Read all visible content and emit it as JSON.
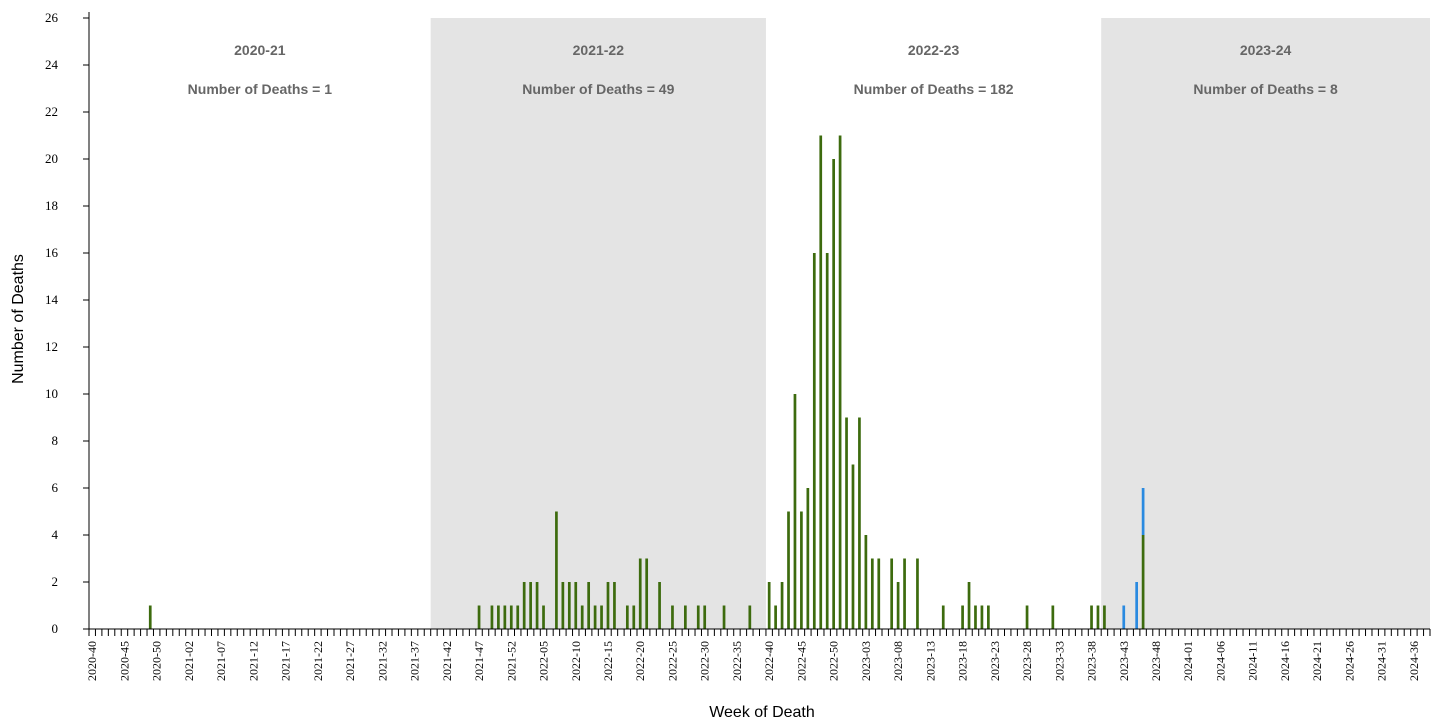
{
  "chart_data": {
    "type": "bar",
    "xlabel": "Week of Death",
    "ylabel": "Number of Deaths",
    "ylim": [
      0,
      26
    ],
    "yticks": [
      0,
      2,
      4,
      6,
      8,
      10,
      12,
      14,
      16,
      18,
      20,
      22,
      24,
      26
    ],
    "grid": false,
    "legend": "none",
    "colors": {
      "main": "#3d6b0e",
      "secondary": "#2a8ae0",
      "band": "#e4e4e4"
    },
    "seasons": [
      {
        "label": "2020-21",
        "subtitle": "Number of Deaths = 1",
        "start": "2020-40",
        "end": "2021-39",
        "shaded": false
      },
      {
        "label": "2021-22",
        "subtitle": "Number of Deaths = 49",
        "start": "2021-40",
        "end": "2022-39",
        "shaded": true
      },
      {
        "label": "2022-23",
        "subtitle": "Number of Deaths = 182",
        "start": "2022-40",
        "end": "2023-39",
        "shaded": false
      },
      {
        "label": "2023-24",
        "subtitle": "Number of Deaths = 8",
        "start": "2023-40",
        "end": "2024-38",
        "shaded": true
      }
    ],
    "tick_labels": [
      "2020-40",
      "2020-45",
      "2020-50",
      "2021-02",
      "2021-07",
      "2021-12",
      "2021-17",
      "2021-22",
      "2021-27",
      "2021-32",
      "2021-37",
      "2021-42",
      "2021-47",
      "2021-52",
      "2022-05",
      "2022-10",
      "2022-15",
      "2022-20",
      "2022-25",
      "2022-30",
      "2022-35",
      "2022-40",
      "2022-45",
      "2022-50",
      "2023-03",
      "2023-08",
      "2023-13",
      "2023-18",
      "2023-23",
      "2023-28",
      "2023-33",
      "2023-38",
      "2023-43",
      "2023-48",
      "2024-01",
      "2024-06",
      "2024-11",
      "2024-16",
      "2024-21",
      "2024-26",
      "2024-31",
      "2024-36"
    ],
    "series": [
      {
        "values": [
          {
            "x": "2020-49",
            "y": 1
          },
          {
            "x": "2021-47",
            "y": 1
          },
          {
            "x": "2021-49",
            "y": 1
          },
          {
            "x": "2021-50",
            "y": 1
          },
          {
            "x": "2021-51",
            "y": 1
          },
          {
            "x": "2021-52",
            "y": 1
          },
          {
            "x": "2022-01",
            "y": 1
          },
          {
            "x": "2022-02",
            "y": 2
          },
          {
            "x": "2022-03",
            "y": 2
          },
          {
            "x": "2022-04",
            "y": 2
          },
          {
            "x": "2022-05",
            "y": 1
          },
          {
            "x": "2022-07",
            "y": 5
          },
          {
            "x": "2022-08",
            "y": 2
          },
          {
            "x": "2022-09",
            "y": 2
          },
          {
            "x": "2022-10",
            "y": 2
          },
          {
            "x": "2022-11",
            "y": 1
          },
          {
            "x": "2022-12",
            "y": 2
          },
          {
            "x": "2022-13",
            "y": 1
          },
          {
            "x": "2022-14",
            "y": 1
          },
          {
            "x": "2022-15",
            "y": 2
          },
          {
            "x": "2022-16",
            "y": 2
          },
          {
            "x": "2022-18",
            "y": 1
          },
          {
            "x": "2022-19",
            "y": 1
          },
          {
            "x": "2022-20",
            "y": 3
          },
          {
            "x": "2022-21",
            "y": 3
          },
          {
            "x": "2022-23",
            "y": 2
          },
          {
            "x": "2022-25",
            "y": 1
          },
          {
            "x": "2022-27",
            "y": 1
          },
          {
            "x": "2022-29",
            "y": 1
          },
          {
            "x": "2022-30",
            "y": 1
          },
          {
            "x": "2022-33",
            "y": 1
          },
          {
            "x": "2022-37",
            "y": 1
          },
          {
            "x": "2022-40",
            "y": 2
          },
          {
            "x": "2022-41",
            "y": 1
          },
          {
            "x": "2022-42",
            "y": 2
          },
          {
            "x": "2022-43",
            "y": 5
          },
          {
            "x": "2022-44",
            "y": 10
          },
          {
            "x": "2022-45",
            "y": 5
          },
          {
            "x": "2022-46",
            "y": 6
          },
          {
            "x": "2022-47",
            "y": 16
          },
          {
            "x": "2022-48",
            "y": 21
          },
          {
            "x": "2022-49",
            "y": 16
          },
          {
            "x": "2022-50",
            "y": 20
          },
          {
            "x": "2022-51",
            "y": 21
          },
          {
            "x": "2022-52",
            "y": 9
          },
          {
            "x": "2023-01",
            "y": 7
          },
          {
            "x": "2023-02",
            "y": 9
          },
          {
            "x": "2023-03",
            "y": 4
          },
          {
            "x": "2023-04",
            "y": 3
          },
          {
            "x": "2023-05",
            "y": 3
          },
          {
            "x": "2023-07",
            "y": 3
          },
          {
            "x": "2023-08",
            "y": 2
          },
          {
            "x": "2023-09",
            "y": 3
          },
          {
            "x": "2023-11",
            "y": 3
          },
          {
            "x": "2023-15",
            "y": 1
          },
          {
            "x": "2023-18",
            "y": 1
          },
          {
            "x": "2023-19",
            "y": 2
          },
          {
            "x": "2023-20",
            "y": 1
          },
          {
            "x": "2023-21",
            "y": 1
          },
          {
            "x": "2023-22",
            "y": 1
          },
          {
            "x": "2023-28",
            "y": 1
          },
          {
            "x": "2023-32",
            "y": 1
          },
          {
            "x": "2023-38",
            "y": 1
          },
          {
            "x": "2023-39",
            "y": 1
          },
          {
            "x": "2023-40",
            "y": 1
          },
          {
            "x": "2023-46",
            "y": 4
          }
        ]
      },
      {
        "values": [
          {
            "x": "2023-43",
            "y": 1
          },
          {
            "x": "2023-45",
            "y": 2
          },
          {
            "x": "2023-46",
            "y": 2
          }
        ]
      }
    ]
  }
}
